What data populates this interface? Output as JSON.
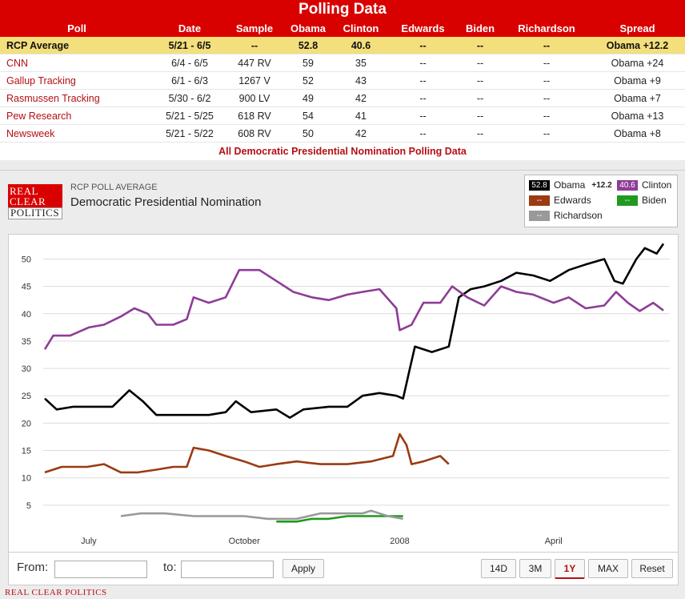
{
  "header": {
    "title": "Polling Data"
  },
  "table": {
    "columns": [
      "Poll",
      "Date",
      "Sample",
      "Obama",
      "Clinton",
      "Edwards",
      "Biden",
      "Richardson",
      "Spread"
    ],
    "rows": [
      [
        "RCP Average",
        "5/21 - 6/5",
        "--",
        "52.8",
        "40.6",
        "--",
        "--",
        "--",
        "Obama +12.2"
      ],
      [
        "CNN",
        "6/4 - 6/5",
        "447 RV",
        "59",
        "35",
        "--",
        "--",
        "--",
        "Obama +24"
      ],
      [
        "Gallup Tracking",
        "6/1 - 6/3",
        "1267 V",
        "52",
        "43",
        "--",
        "--",
        "--",
        "Obama +9"
      ],
      [
        "Rasmussen Tracking",
        "5/30 - 6/2",
        "900 LV",
        "49",
        "42",
        "--",
        "--",
        "--",
        "Obama +7"
      ],
      [
        "Pew Research",
        "5/21 - 5/25",
        "618 RV",
        "54",
        "41",
        "--",
        "--",
        "--",
        "Obama +13"
      ],
      [
        "Newsweek",
        "5/21 - 5/22",
        "608 RV",
        "50",
        "42",
        "--",
        "--",
        "--",
        "Obama +8"
      ]
    ],
    "all_link": "All Democratic Presidential Nomination Polling Data"
  },
  "chart_header": {
    "logo_lines": [
      "REAL",
      "CLEAR",
      "POLITICS"
    ],
    "label": "RCP POLL AVERAGE",
    "title": "Democratic Presidential Nomination"
  },
  "legend": {
    "obama": {
      "value": "52.8",
      "name": "Obama",
      "spread": "+12.2"
    },
    "clinton": {
      "value": "40.6",
      "name": "Clinton"
    },
    "edwards": {
      "value": "--",
      "name": "Edwards"
    },
    "biden": {
      "value": "--",
      "name": "Biden"
    },
    "richardson": {
      "value": "--",
      "name": "Richardson"
    }
  },
  "controls": {
    "from_label": "From:",
    "to_label": "to:",
    "apply": "Apply",
    "ranges": [
      "14D",
      "3M",
      "1Y",
      "MAX"
    ],
    "selected_range": "1Y",
    "reset": "Reset"
  },
  "footer": "REAL CLEAR POLITICS",
  "chart_data": {
    "type": "line",
    "title": "Democratic Presidential Nomination",
    "xlabel": "",
    "ylabel": "",
    "ylim": [
      0,
      53
    ],
    "yticks": [
      5,
      10,
      15,
      20,
      25,
      30,
      35,
      40,
      45,
      50
    ],
    "xlim": [
      "2007-06-05",
      "2008-06-05"
    ],
    "xticks": [
      {
        "date": "2007-07-01",
        "label": "July"
      },
      {
        "date": "2007-10-01",
        "label": "October"
      },
      {
        "date": "2008-01-01",
        "label": "2008"
      },
      {
        "date": "2008-04-01",
        "label": "April"
      }
    ],
    "grid": true,
    "series": [
      {
        "name": "Obama",
        "color": "#000000",
        "points": [
          [
            "2007-06-05",
            24.5
          ],
          [
            "2007-06-12",
            22.5
          ],
          [
            "2007-06-22",
            23
          ],
          [
            "2007-07-01",
            23
          ],
          [
            "2007-07-15",
            23
          ],
          [
            "2007-07-25",
            26
          ],
          [
            "2007-08-02",
            24
          ],
          [
            "2007-08-10",
            21.5
          ],
          [
            "2007-08-25",
            21.5
          ],
          [
            "2007-09-10",
            21.5
          ],
          [
            "2007-09-20",
            22
          ],
          [
            "2007-09-26",
            24
          ],
          [
            "2007-10-05",
            22
          ],
          [
            "2007-10-20",
            22.5
          ],
          [
            "2007-10-28",
            21
          ],
          [
            "2007-11-05",
            22.5
          ],
          [
            "2007-11-20",
            23
          ],
          [
            "2007-12-01",
            23
          ],
          [
            "2007-12-10",
            25
          ],
          [
            "2007-12-20",
            25.5
          ],
          [
            "2007-12-30",
            25
          ],
          [
            "2008-01-03",
            24.5
          ],
          [
            "2008-01-07",
            30
          ],
          [
            "2008-01-10",
            34
          ],
          [
            "2008-01-20",
            33
          ],
          [
            "2008-01-30",
            34
          ],
          [
            "2008-02-05",
            43
          ],
          [
            "2008-02-12",
            44.5
          ],
          [
            "2008-02-20",
            45
          ],
          [
            "2008-03-01",
            46
          ],
          [
            "2008-03-10",
            47.5
          ],
          [
            "2008-03-20",
            47
          ],
          [
            "2008-03-30",
            46
          ],
          [
            "2008-04-10",
            48
          ],
          [
            "2008-04-20",
            49
          ],
          [
            "2008-05-01",
            50
          ],
          [
            "2008-05-07",
            46
          ],
          [
            "2008-05-12",
            45.5
          ],
          [
            "2008-05-20",
            50
          ],
          [
            "2008-05-25",
            52
          ],
          [
            "2008-06-01",
            51
          ],
          [
            "2008-06-05",
            52.8
          ]
        ]
      },
      {
        "name": "Clinton",
        "color": "#8e3c97",
        "points": [
          [
            "2007-06-05",
            33.5
          ],
          [
            "2007-06-10",
            36
          ],
          [
            "2007-06-20",
            36
          ],
          [
            "2007-07-01",
            37.5
          ],
          [
            "2007-07-10",
            38
          ],
          [
            "2007-07-20",
            39.5
          ],
          [
            "2007-07-28",
            41
          ],
          [
            "2007-08-05",
            40
          ],
          [
            "2007-08-10",
            38
          ],
          [
            "2007-08-20",
            38
          ],
          [
            "2007-08-28",
            39
          ],
          [
            "2007-09-01",
            43
          ],
          [
            "2007-09-10",
            42
          ],
          [
            "2007-09-20",
            43
          ],
          [
            "2007-09-28",
            48
          ],
          [
            "2007-10-10",
            48
          ],
          [
            "2007-10-20",
            46
          ],
          [
            "2007-10-30",
            44
          ],
          [
            "2007-11-10",
            43
          ],
          [
            "2007-11-20",
            42.5
          ],
          [
            "2007-12-01",
            43.5
          ],
          [
            "2007-12-10",
            44
          ],
          [
            "2007-12-20",
            44.5
          ],
          [
            "2007-12-30",
            41
          ],
          [
            "2008-01-01",
            37
          ],
          [
            "2008-01-08",
            38
          ],
          [
            "2008-01-15",
            42
          ],
          [
            "2008-01-25",
            42
          ],
          [
            "2008-02-01",
            45
          ],
          [
            "2008-02-10",
            43
          ],
          [
            "2008-02-20",
            41.5
          ],
          [
            "2008-03-01",
            45
          ],
          [
            "2008-03-10",
            44
          ],
          [
            "2008-03-20",
            43.5
          ],
          [
            "2008-04-01",
            42
          ],
          [
            "2008-04-10",
            43
          ],
          [
            "2008-04-20",
            41
          ],
          [
            "2008-05-01",
            41.5
          ],
          [
            "2008-05-08",
            44
          ],
          [
            "2008-05-15",
            42
          ],
          [
            "2008-05-22",
            40.5
          ],
          [
            "2008-05-30",
            42
          ],
          [
            "2008-06-05",
            40.6
          ]
        ]
      },
      {
        "name": "Edwards",
        "color": "#9a3b12",
        "points": [
          [
            "2007-06-05",
            11
          ],
          [
            "2007-06-15",
            12
          ],
          [
            "2007-06-30",
            12
          ],
          [
            "2007-07-10",
            12.5
          ],
          [
            "2007-07-20",
            11
          ],
          [
            "2007-07-30",
            11
          ],
          [
            "2007-08-10",
            11.5
          ],
          [
            "2007-08-20",
            12
          ],
          [
            "2007-08-28",
            12
          ],
          [
            "2007-09-01",
            15.5
          ],
          [
            "2007-09-10",
            15
          ],
          [
            "2007-09-20",
            14
          ],
          [
            "2007-10-01",
            13
          ],
          [
            "2007-10-10",
            12
          ],
          [
            "2007-10-20",
            12.5
          ],
          [
            "2007-11-01",
            13
          ],
          [
            "2007-11-15",
            12.5
          ],
          [
            "2007-12-01",
            12.5
          ],
          [
            "2007-12-15",
            13
          ],
          [
            "2007-12-28",
            14
          ],
          [
            "2008-01-01",
            18
          ],
          [
            "2008-01-05",
            16
          ],
          [
            "2008-01-08",
            12.5
          ],
          [
            "2008-01-15",
            13
          ],
          [
            "2008-01-25",
            14
          ],
          [
            "2008-01-30",
            12.5
          ]
        ]
      },
      {
        "name": "Biden",
        "color": "#1f9a1f",
        "points": [
          [
            "2007-10-20",
            2
          ],
          [
            "2007-11-01",
            2
          ],
          [
            "2007-11-10",
            2.5
          ],
          [
            "2007-11-20",
            2.5
          ],
          [
            "2007-12-01",
            3
          ],
          [
            "2007-12-10",
            3
          ],
          [
            "2007-12-20",
            3
          ],
          [
            "2008-01-03",
            3
          ]
        ]
      },
      {
        "name": "Richardson",
        "color": "#999999",
        "points": [
          [
            "2007-07-20",
            3
          ],
          [
            "2007-08-01",
            3.5
          ],
          [
            "2007-08-15",
            3.5
          ],
          [
            "2007-09-01",
            3
          ],
          [
            "2007-09-15",
            3
          ],
          [
            "2007-10-01",
            3
          ],
          [
            "2007-10-15",
            2.5
          ],
          [
            "2007-11-01",
            2.5
          ],
          [
            "2007-11-15",
            3.5
          ],
          [
            "2007-12-01",
            3.5
          ],
          [
            "2007-12-10",
            3.5
          ],
          [
            "2007-12-15",
            4
          ],
          [
            "2007-12-25",
            3
          ],
          [
            "2008-01-03",
            2.5
          ]
        ]
      }
    ]
  }
}
